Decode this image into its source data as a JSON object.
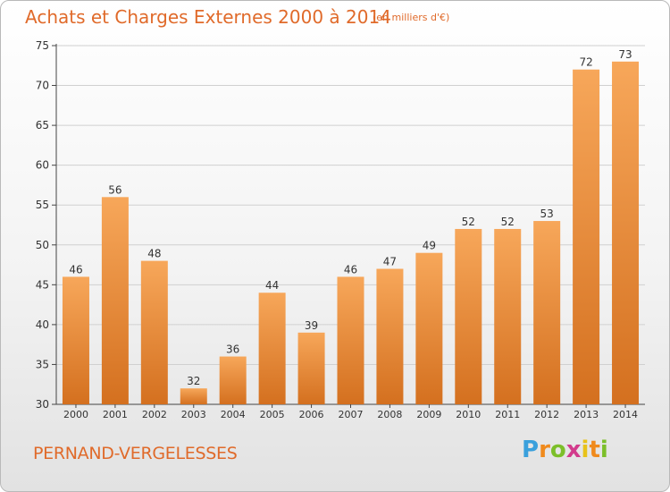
{
  "header": {
    "title": "Achats et Charges Externes 2000 à 2014",
    "unit": "(en milliers d'€)"
  },
  "footer": {
    "commune": "PERNAND-VERGELESSES",
    "logo_letters": [
      "P",
      "r",
      "o",
      "x",
      "i",
      "t",
      "i"
    ]
  },
  "colors": {
    "bar_top": "#f7a75a",
    "bar_bottom": "#d4701f",
    "title": "#e06a2a",
    "axis": "#444444",
    "grid": "#d0d0d0"
  },
  "chart_data": {
    "type": "bar",
    "title": "Achats et Charges Externes 2000 à 2014",
    "xlabel": "",
    "ylabel": "",
    "categories": [
      "2000",
      "2001",
      "2002",
      "2003",
      "2004",
      "2005",
      "2006",
      "2007",
      "2008",
      "2009",
      "2010",
      "2011",
      "2012",
      "2013",
      "2014"
    ],
    "values": [
      46,
      56,
      48,
      32,
      36,
      44,
      39,
      46,
      47,
      49,
      52,
      52,
      53,
      72,
      73
    ],
    "ylim": [
      30,
      75
    ],
    "yticks": [
      30,
      35,
      40,
      45,
      50,
      55,
      60,
      65,
      70,
      75
    ],
    "grid": true,
    "legend": "none"
  }
}
